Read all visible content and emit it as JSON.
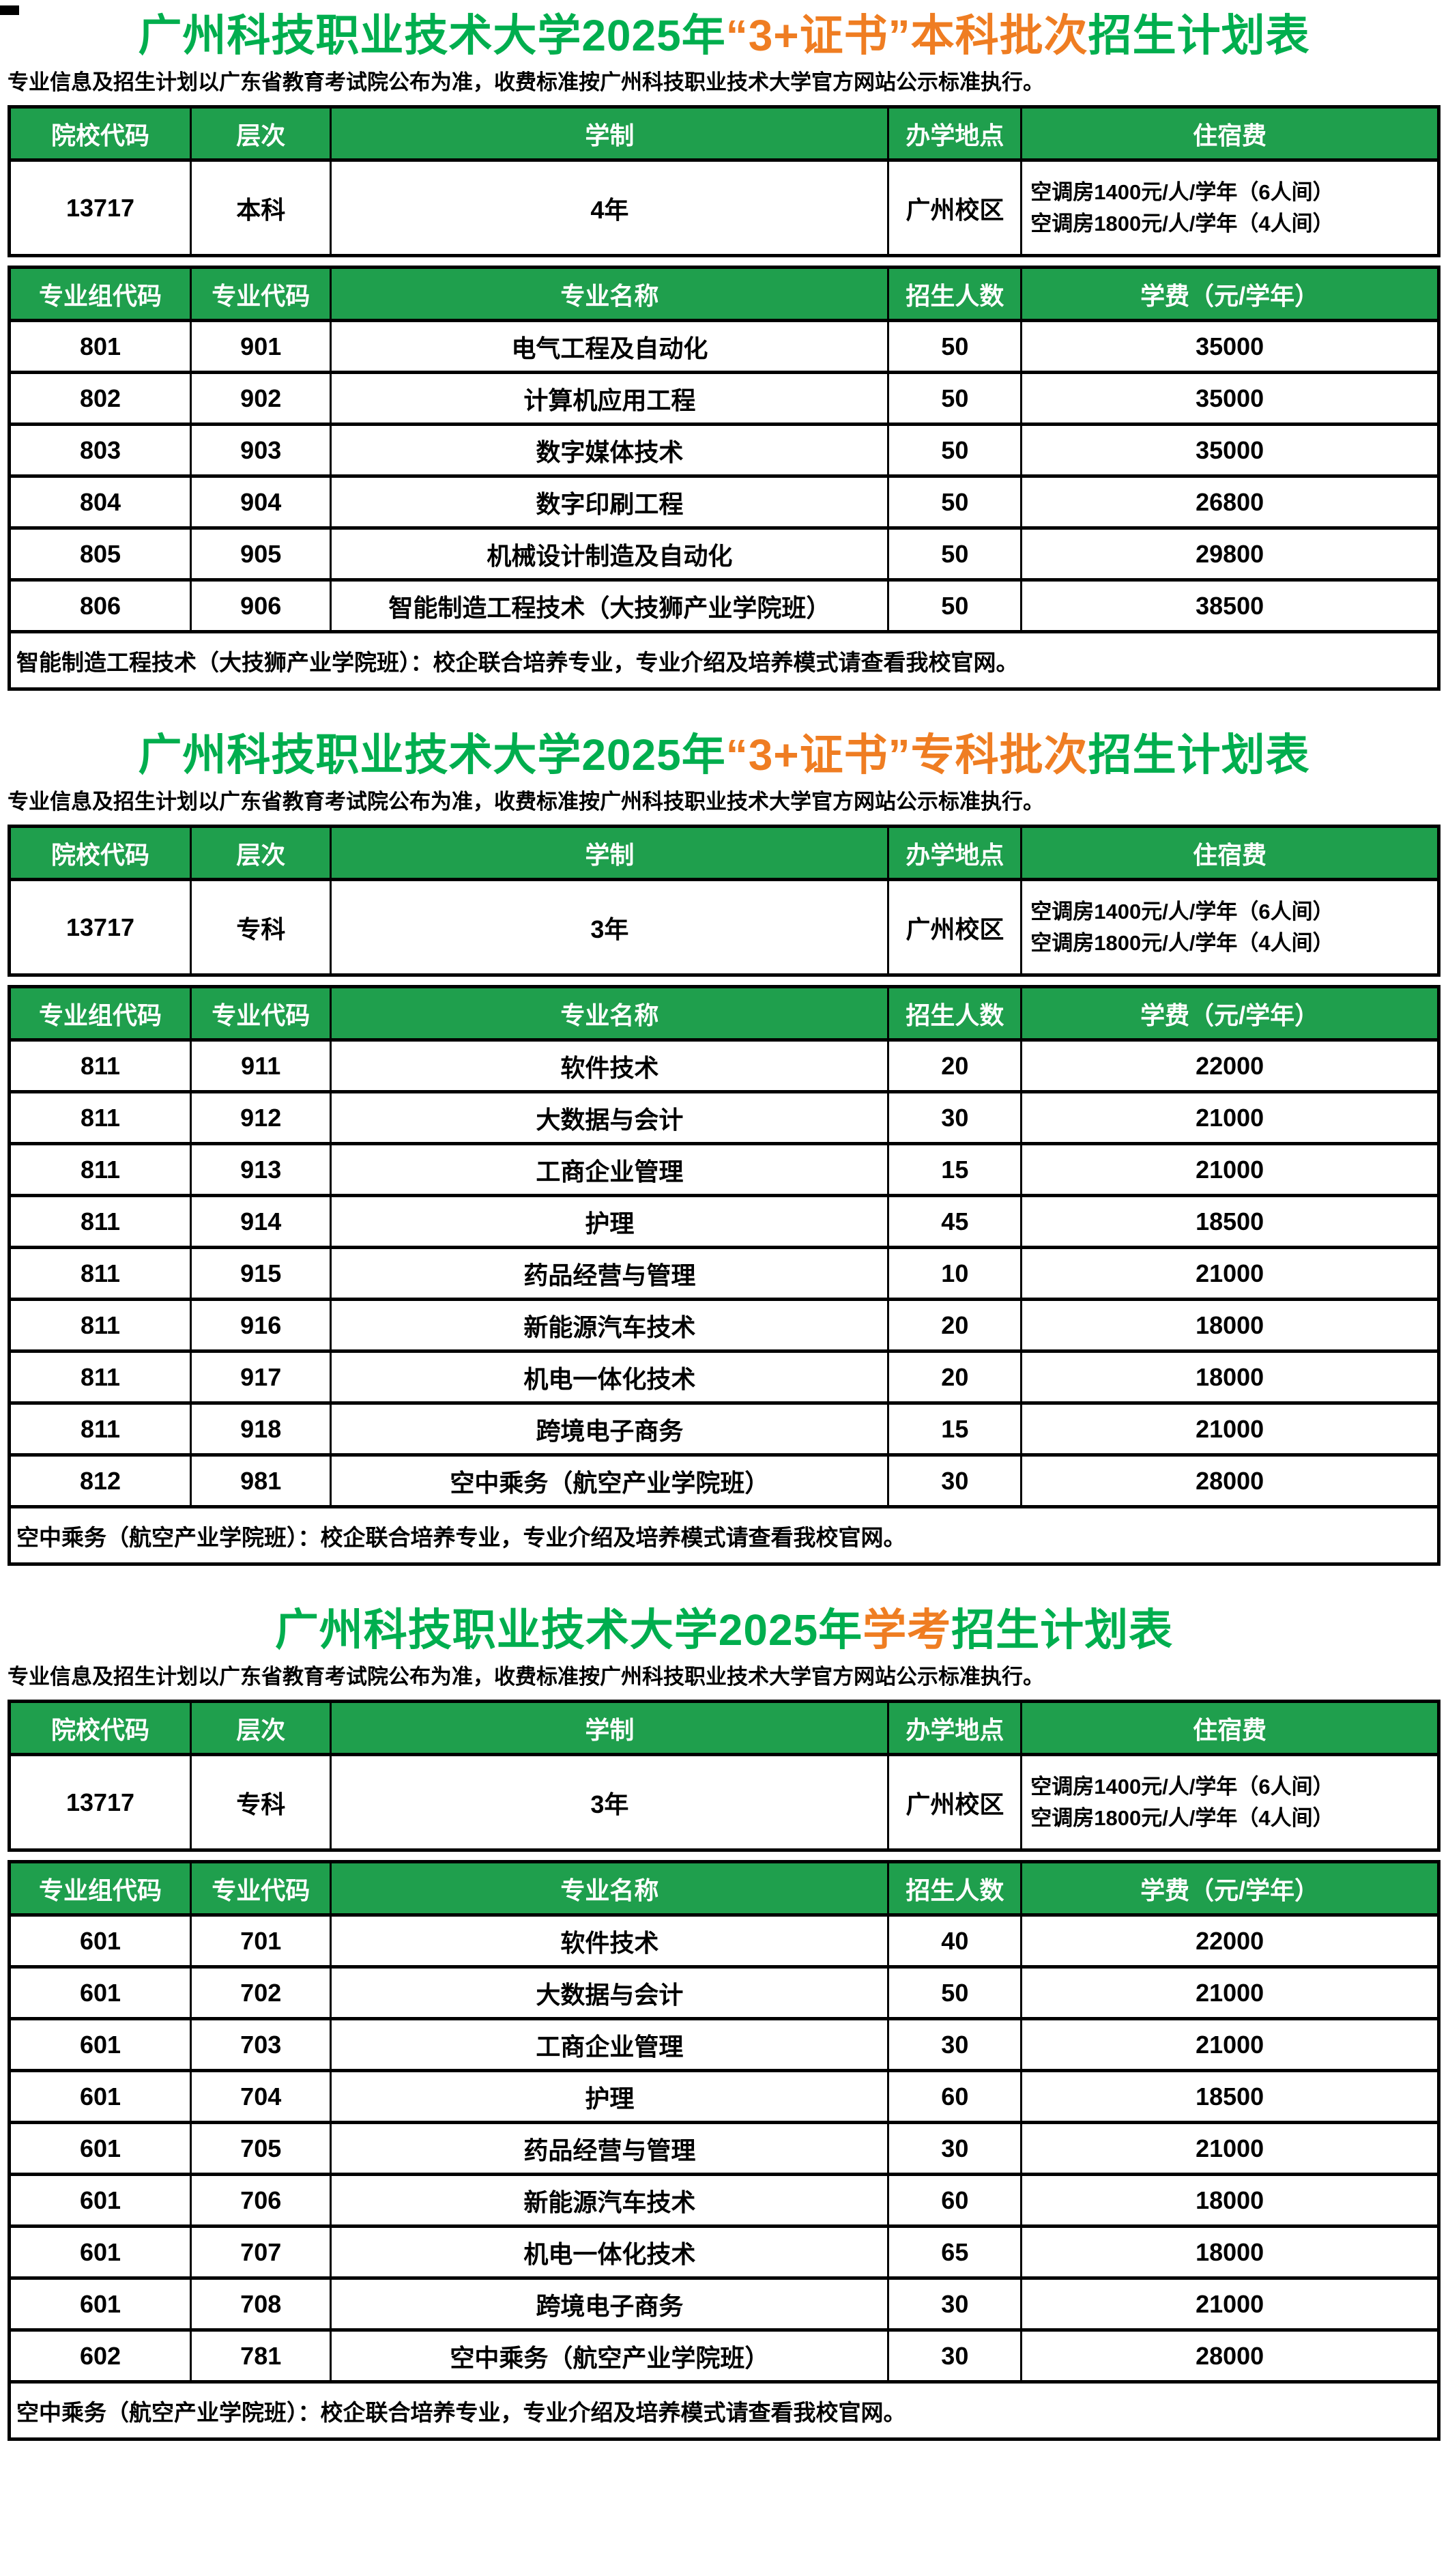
{
  "colors": {
    "title_green": "#00AE4E",
    "title_orange": "#EF7D22",
    "header_green": "#1F9F4D",
    "header_text": "#FFFFFF",
    "body_text": "#000000"
  },
  "shared": {
    "note": "专业信息及招生计划以广东省教育考试院公布为准，收费标准按广州科技职业技术大学官方网站公示标准执行。",
    "info_headers": [
      "院校代码",
      "层次",
      "学制",
      "办学地点",
      "住宿费"
    ],
    "major_headers": [
      "专业组代码",
      "专业代码",
      "专业名称",
      "招生人数",
      "学费（元/学年）"
    ]
  },
  "sections": [
    {
      "title": {
        "prefix": "广州科技职业技术大学2025年",
        "highlight": "“3+证书”本科批次",
        "suffix": "招生计划表"
      },
      "info": {
        "college_code": "13717",
        "level": "本科",
        "duration": "4年",
        "campus": "广州校区",
        "accommodation_line1": "空调房1400元/人/学年（6人间）",
        "accommodation_line2": "空调房1800元/人/学年（4人间）"
      },
      "majors": {
        "rows": [
          [
            "801",
            "901",
            "电气工程及自动化",
            "50",
            "35000"
          ],
          [
            "802",
            "902",
            "计算机应用工程",
            "50",
            "35000"
          ],
          [
            "803",
            "903",
            "数字媒体技术",
            "50",
            "35000"
          ],
          [
            "804",
            "904",
            "数字印刷工程",
            "50",
            "26800"
          ],
          [
            "805",
            "905",
            "机械设计制造及自动化",
            "50",
            "29800"
          ],
          [
            "806",
            "906",
            "智能制造工程技术（大技狮产业学院班）",
            "50",
            "38500"
          ]
        ],
        "footnote": "智能制造工程技术（大技狮产业学院班）：校企联合培养专业，专业介绍及培养模式请查看我校官网。"
      }
    },
    {
      "title": {
        "prefix": "广州科技职业技术大学2025年",
        "highlight": "“3+证书”专科批次",
        "suffix": "招生计划表"
      },
      "info": {
        "college_code": "13717",
        "level": "专科",
        "duration": "3年",
        "campus": "广州校区",
        "accommodation_line1": "空调房1400元/人/学年（6人间）",
        "accommodation_line2": "空调房1800元/人/学年（4人间）"
      },
      "majors": {
        "rows": [
          [
            "811",
            "911",
            "软件技术",
            "20",
            "22000"
          ],
          [
            "811",
            "912",
            "大数据与会计",
            "30",
            "21000"
          ],
          [
            "811",
            "913",
            "工商企业管理",
            "15",
            "21000"
          ],
          [
            "811",
            "914",
            "护理",
            "45",
            "18500"
          ],
          [
            "811",
            "915",
            "药品经营与管理",
            "10",
            "21000"
          ],
          [
            "811",
            "916",
            "新能源汽车技术",
            "20",
            "18000"
          ],
          [
            "811",
            "917",
            "机电一体化技术",
            "20",
            "18000"
          ],
          [
            "811",
            "918",
            "跨境电子商务",
            "15",
            "21000"
          ],
          [
            "812",
            "981",
            "空中乘务（航空产业学院班）",
            "30",
            "28000"
          ]
        ],
        "footnote": "空中乘务（航空产业学院班）：校企联合培养专业，专业介绍及培养模式请查看我校官网。"
      }
    },
    {
      "title": {
        "prefix": "广州科技职业技术大学2025年",
        "highlight": "学考",
        "suffix": "招生计划表"
      },
      "info": {
        "college_code": "13717",
        "level": "专科",
        "duration": "3年",
        "campus": "广州校区",
        "accommodation_line1": "空调房1400元/人/学年（6人间）",
        "accommodation_line2": "空调房1800元/人/学年（4人间）"
      },
      "majors": {
        "rows": [
          [
            "601",
            "701",
            "软件技术",
            "40",
            "22000"
          ],
          [
            "601",
            "702",
            "大数据与会计",
            "50",
            "21000"
          ],
          [
            "601",
            "703",
            "工商企业管理",
            "30",
            "21000"
          ],
          [
            "601",
            "704",
            "护理",
            "60",
            "18500"
          ],
          [
            "601",
            "705",
            "药品经营与管理",
            "30",
            "21000"
          ],
          [
            "601",
            "706",
            "新能源汽车技术",
            "60",
            "18000"
          ],
          [
            "601",
            "707",
            "机电一体化技术",
            "65",
            "18000"
          ],
          [
            "601",
            "708",
            "跨境电子商务",
            "30",
            "21000"
          ],
          [
            "602",
            "781",
            "空中乘务（航空产业学院班）",
            "30",
            "28000"
          ]
        ],
        "footnote": "空中乘务（航空产业学院班）：校企联合培养专业，专业介绍及培养模式请查看我校官网。"
      }
    }
  ]
}
